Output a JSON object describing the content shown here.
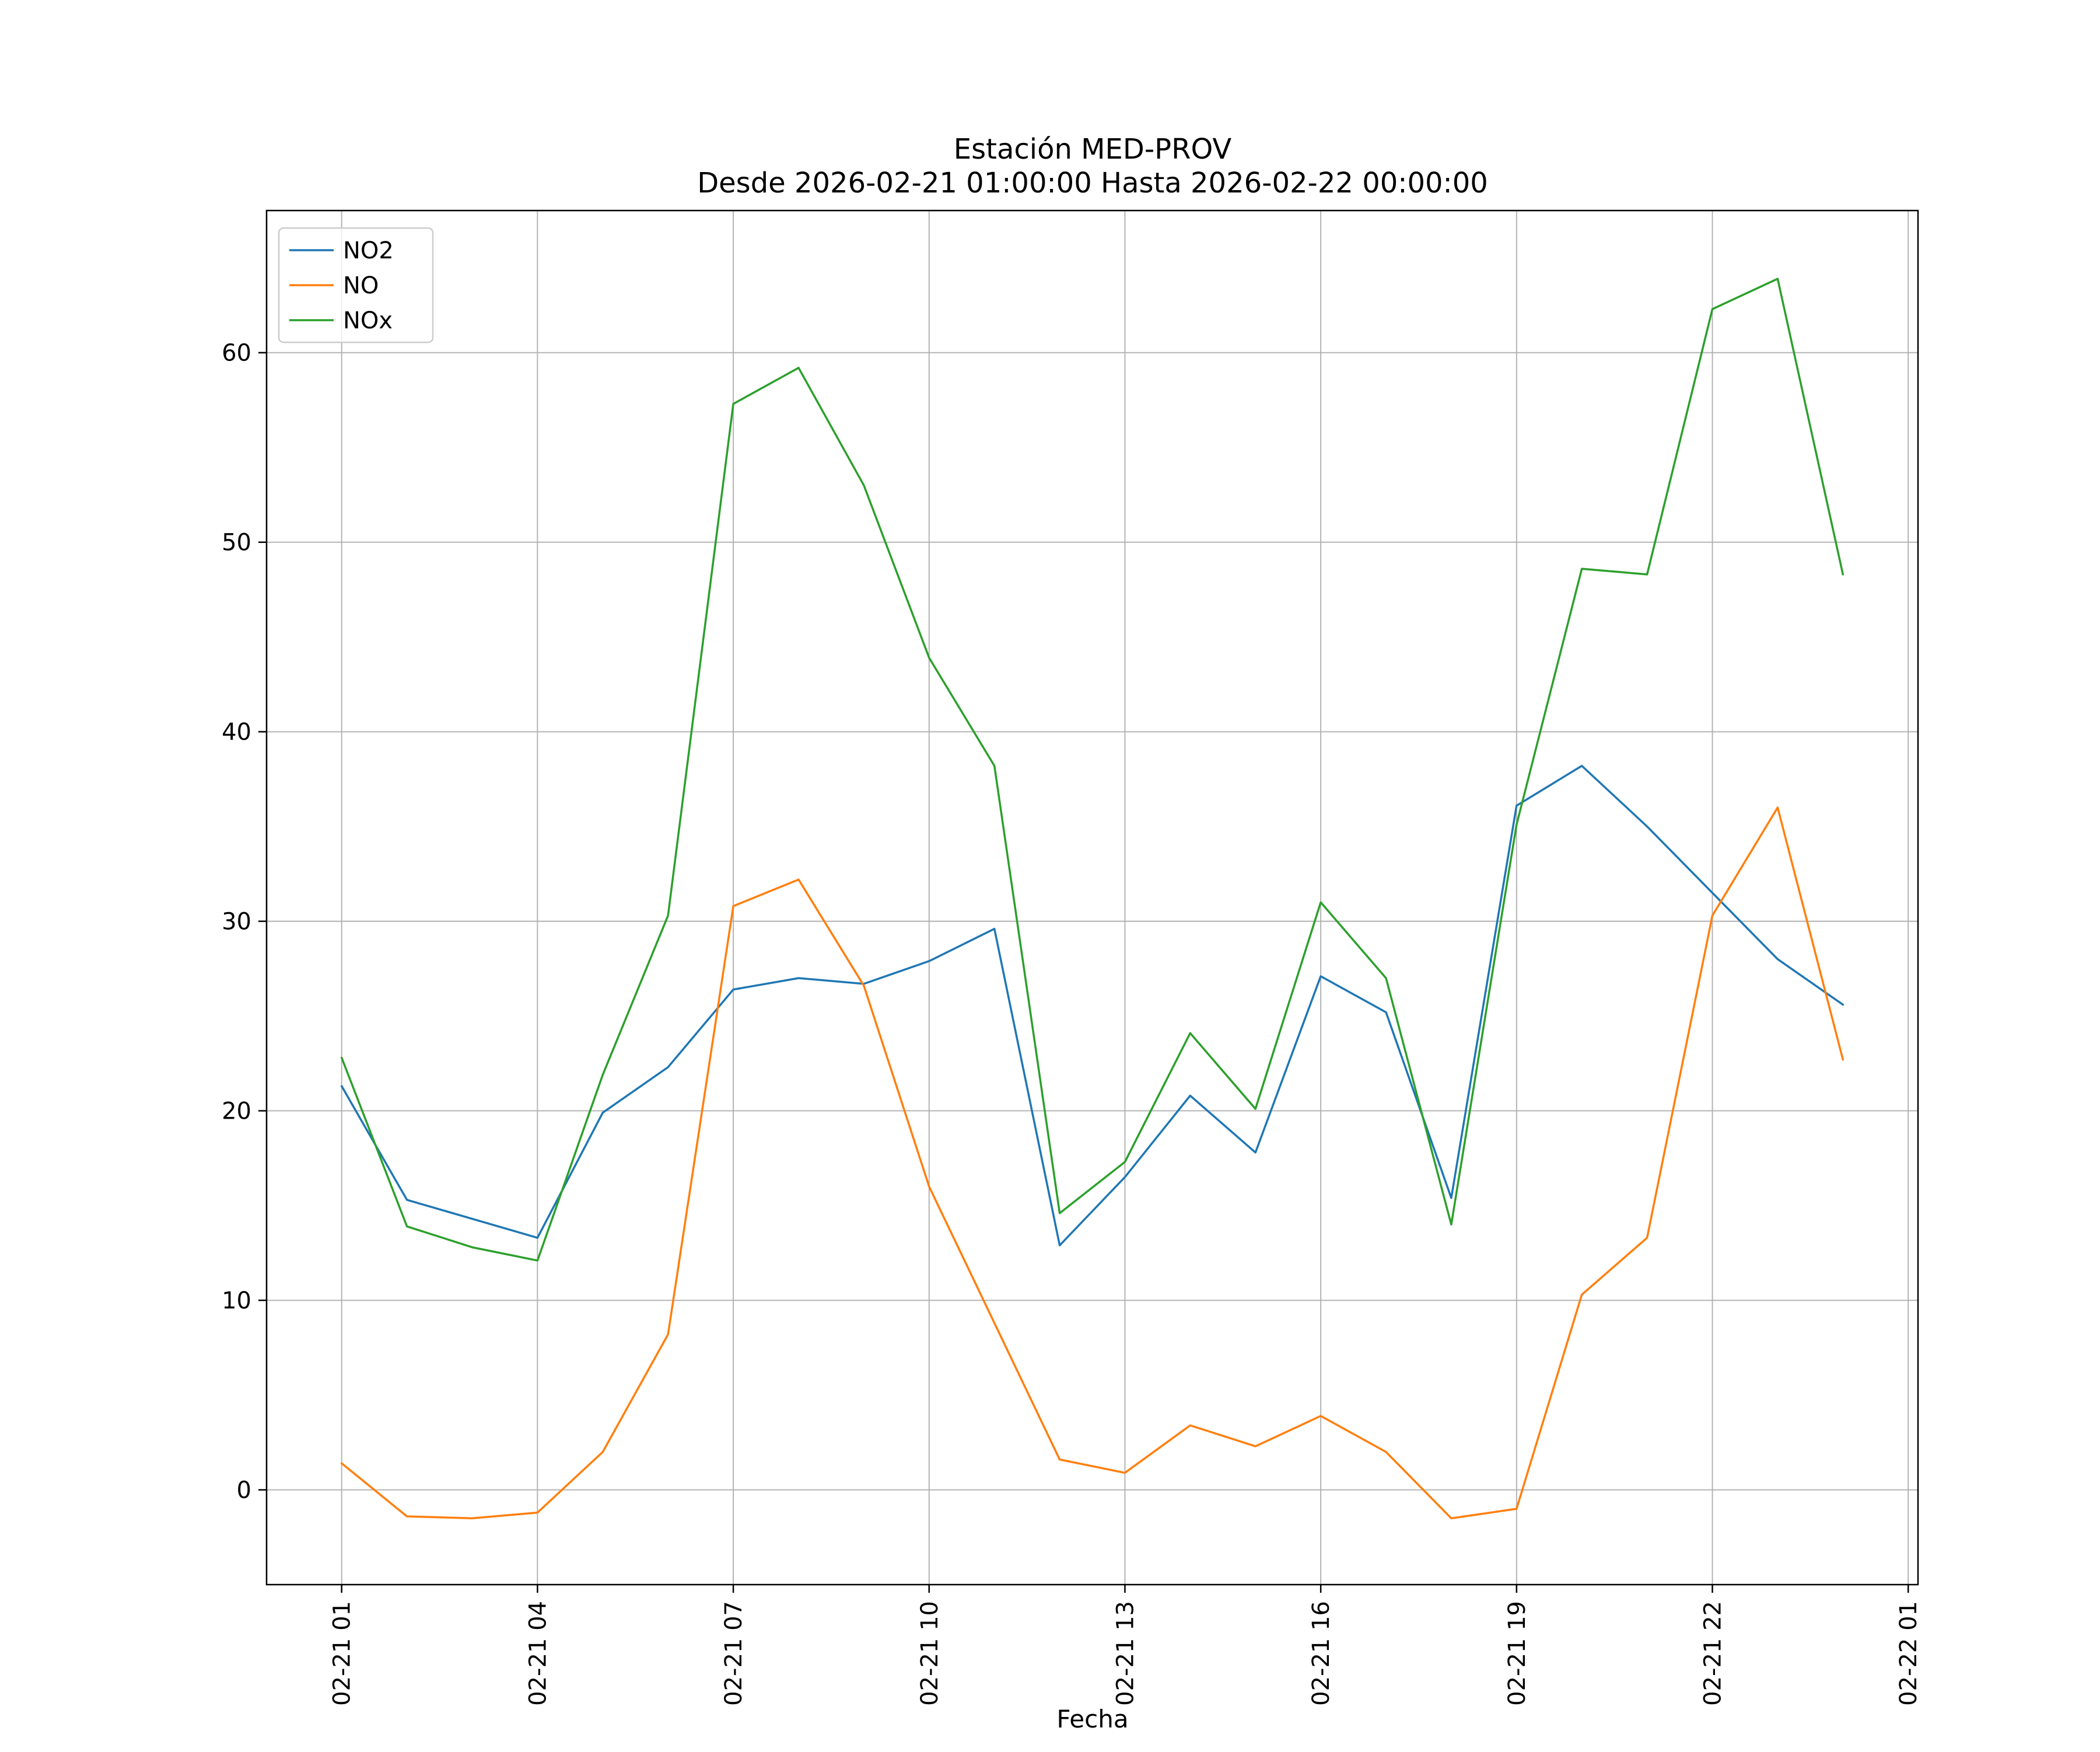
{
  "title": {
    "line1": "Estación MED-PROV",
    "line2": "Desde 2026-02-21 01:00:00 Hasta 2026-02-22 00:00:00"
  },
  "chart_data": {
    "type": "line",
    "title": "Estación MED-PROV",
    "subtitle": "Desde 2026-02-21 01:00:00 Hasta 2026-02-22 00:00:00",
    "xlabel": "Fecha",
    "ylabel": "",
    "grid": true,
    "legend_position": "upper left",
    "xlim": [
      -0.15,
      25.15
    ],
    "ylim": [
      -5,
      67.5
    ],
    "x_tick_hours": [
      1,
      4,
      7,
      10,
      13,
      16,
      19,
      22,
      25
    ],
    "x_tick_labels": [
      "02-21 01",
      "02-21 04",
      "02-21 07",
      "02-21 10",
      "02-21 13",
      "02-21 16",
      "02-21 19",
      "02-21 22",
      "02-22 01"
    ],
    "y_ticks": [
      0,
      10,
      20,
      30,
      40,
      50,
      60
    ],
    "x_hours": [
      1,
      2,
      3,
      4,
      5,
      6,
      7,
      8,
      9,
      10,
      11,
      12,
      13,
      14,
      15,
      16,
      17,
      18,
      19,
      20,
      21,
      22,
      23,
      24
    ],
    "series": [
      {
        "name": "NO2",
        "color": "#1f77b4",
        "values": [
          21.3,
          15.3,
          14.3,
          13.3,
          19.9,
          22.3,
          26.4,
          27.0,
          26.7,
          27.9,
          29.6,
          12.9,
          16.5,
          20.8,
          17.8,
          27.1,
          25.2,
          15.4,
          36.1,
          38.2,
          35.0,
          31.5,
          28.0,
          25.6
        ]
      },
      {
        "name": "NO",
        "color": "#ff7f0e",
        "values": [
          1.4,
          -1.4,
          -1.5,
          -1.2,
          2.0,
          8.2,
          30.8,
          32.2,
          26.6,
          16.0,
          8.8,
          1.6,
          0.9,
          3.4,
          2.3,
          3.9,
          2.0,
          -1.5,
          -1.0,
          10.3,
          13.3,
          30.3,
          36.0,
          22.7
        ]
      },
      {
        "name": "NOx",
        "color": "#2ca02c",
        "values": [
          22.8,
          13.9,
          12.8,
          12.1,
          21.9,
          30.3,
          57.3,
          59.2,
          53.0,
          43.9,
          38.2,
          14.6,
          17.3,
          24.1,
          20.1,
          31.0,
          27.0,
          14.0,
          35.1,
          48.6,
          48.3,
          62.3,
          63.9,
          48.3
        ]
      }
    ],
    "style": {
      "grid_color": "#b0b0b0",
      "frame_color": "#000000",
      "legend_edge_color": "#cccccc",
      "background": "#ffffff"
    }
  }
}
